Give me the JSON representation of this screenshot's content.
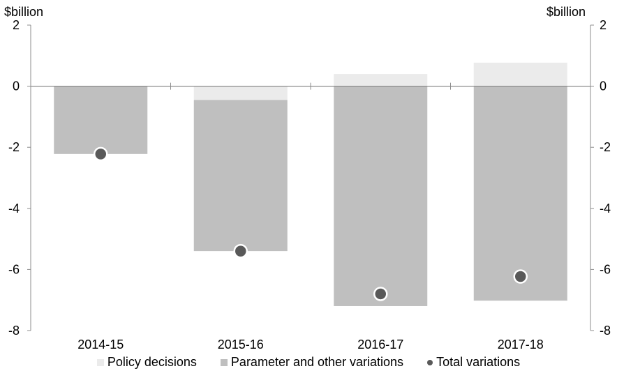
{
  "chart_data": {
    "type": "bar",
    "stacked": true,
    "categories": [
      "2014-15",
      "2015-16",
      "2016-17",
      "2017-18"
    ],
    "series": [
      {
        "name": "Policy decisions",
        "type": "bar",
        "color": "#ebebeb",
        "values": [
          0.0,
          -0.45,
          0.4,
          0.77
        ]
      },
      {
        "name": "Parameter and other variations",
        "type": "bar",
        "color": "#bfbfbf",
        "values": [
          -2.22,
          -4.95,
          -7.2,
          -7.02
        ]
      },
      {
        "name": "Total variations",
        "type": "scatter",
        "color": "#595959",
        "values": [
          -2.22,
          -5.4,
          -6.8,
          -6.23
        ]
      }
    ],
    "ylim": [
      -8,
      2
    ],
    "yticks": [
      2,
      0,
      -2,
      -4,
      -6,
      -8
    ],
    "left_unit": "$billion",
    "right_unit": "$billion",
    "legend_position": "bottom",
    "grid": false
  }
}
